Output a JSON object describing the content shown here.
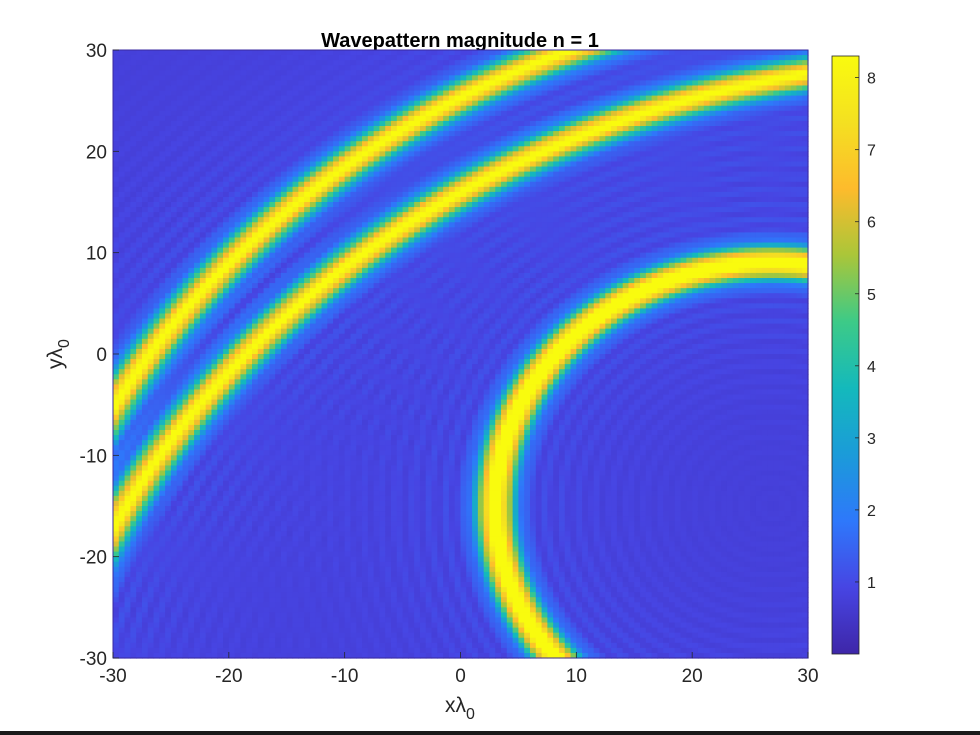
{
  "chart_data": {
    "type": "heatmap",
    "title": "Wavepattern magnitude n = 1",
    "xlabel": "xλ",
    "xlabel_subscript": "0",
    "ylabel": "yλ",
    "ylabel_subscript": "0",
    "xlim": [
      -30,
      30
    ],
    "ylim": [
      -30,
      30
    ],
    "x_ticks": [
      -30,
      -20,
      -10,
      0,
      10,
      20,
      30
    ],
    "y_ticks": [
      -30,
      -20,
      -10,
      0,
      10,
      20,
      30
    ],
    "colorbar": {
      "colormap": "parula",
      "clim": [
        0,
        8.3
      ],
      "ticks": [
        1,
        2,
        3,
        4,
        5,
        6,
        7,
        8
      ]
    },
    "bands": [
      {
        "center": [
          27,
          -15
        ],
        "radius": 24,
        "peak": 8.3,
        "note": "passes (-30,5.5) and (15,30)"
      },
      {
        "center": [
          40,
          -44
        ],
        "radius": 80,
        "peak": 7.2,
        "note": "passes (-30,-11.5) and (30,21)"
      },
      {
        "center": [
          45,
          -55
        ],
        "radius": 84,
        "peak": 7.2,
        "note": "passes (-30,-21) and (30,5)"
      }
    ],
    "grid": false
  },
  "colors": {
    "parula_stops": [
      "#3e26a8",
      "#4745e3",
      "#2e78fb",
      "#1b9bd9",
      "#14b9bc",
      "#3dca87",
      "#aac639",
      "#fdbb2c",
      "#f4e021",
      "#f9fb0e"
    ],
    "background_level": "#3d30b5"
  }
}
